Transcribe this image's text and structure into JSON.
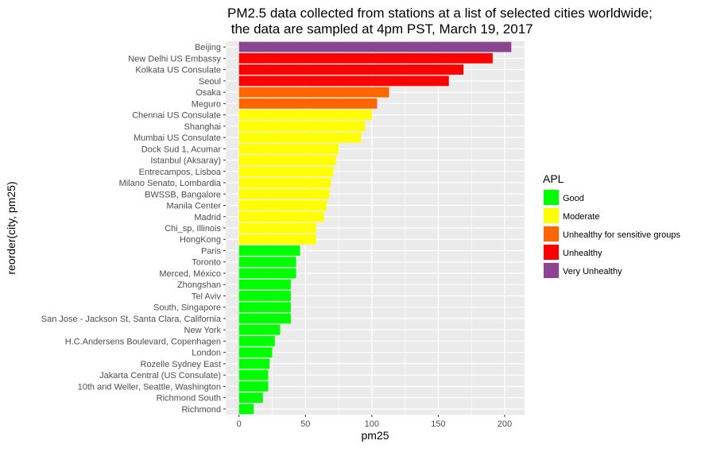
{
  "chart_data": {
    "type": "bar",
    "orientation": "horizontal",
    "title": "PM2.5 data collected from stations at a list of selected cities worldwide;\n the data are sampled at 4pm PST, March 19, 2017",
    "xlabel": "pm25",
    "ylabel": "reorder(city, pm25)",
    "xlim": [
      -10,
      215
    ],
    "x_ticks": [
      0,
      50,
      100,
      150,
      200
    ],
    "grid": true,
    "legend_position": "right",
    "legend": {
      "title": "APL",
      "items": [
        {
          "label": "Good",
          "color": "#00ff00"
        },
        {
          "label": "Moderate",
          "color": "#ffff00"
        },
        {
          "label": "Unhealthy for sensitive groups",
          "color": "#ff6600"
        },
        {
          "label": "Unhealthy",
          "color": "#ff0000"
        },
        {
          "label": "Very Unhealthy",
          "color": "#8b4490"
        }
      ]
    },
    "categories": [
      "Beijing",
      "New Delhi US Embassy",
      "Kolkata US Consulate",
      "Seoul",
      "Osaka",
      "Meguro",
      "Chennai US Consulate",
      "Shanghai",
      "Mumbai US Consulate",
      "Dock Sud 1, Acumar",
      "Istanbul (Aksaray)",
      "Entrecampos, Lisboa",
      "Milano Senato, Lombardia",
      "BWSSB, Bangalore",
      "Manila Center",
      "Madrid",
      "Chi_sp, Illinois",
      "HongKong",
      "Paris",
      "Toronto",
      "Merced, México",
      "Zhongshan",
      "Tel Aviv",
      "South, Singapore",
      "San Jose - Jackson St, Santa Clara, California",
      "New York",
      "H.C.Andersens Boulevard, Copenhagen",
      "London",
      "Rozelle Sydney East",
      "Jakarta Central (US Consulate)",
      "10th and Weller, Seattle, Washington",
      "Richmond South",
      "Richmond"
    ],
    "values": [
      205,
      191,
      169,
      158,
      113,
      104,
      100,
      95,
      92,
      75,
      73,
      71,
      69,
      68,
      66,
      64,
      58,
      58,
      46,
      43,
      43,
      39,
      39,
      39,
      39,
      31,
      27,
      25,
      23,
      22,
      22,
      18,
      11
    ],
    "category_levels": [
      "Very Unhealthy",
      "Unhealthy",
      "Unhealthy",
      "Unhealthy",
      "Unhealthy for sensitive groups",
      "Unhealthy for sensitive groups",
      "Moderate",
      "Moderate",
      "Moderate",
      "Moderate",
      "Moderate",
      "Moderate",
      "Moderate",
      "Moderate",
      "Moderate",
      "Moderate",
      "Moderate",
      "Moderate",
      "Good",
      "Good",
      "Good",
      "Good",
      "Good",
      "Good",
      "Good",
      "Good",
      "Good",
      "Good",
      "Good",
      "Good",
      "Good",
      "Good",
      "Good"
    ],
    "panel_background": "#ebebeb",
    "grid_color": "#ffffff"
  }
}
